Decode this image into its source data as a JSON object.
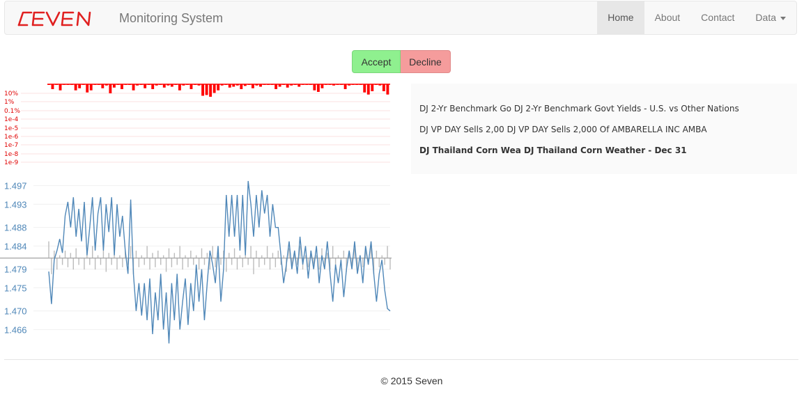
{
  "navbar": {
    "brand_logo_text": "SEVEN",
    "brand_title": "Monitoring System",
    "items": [
      {
        "label": "Home",
        "active": true
      },
      {
        "label": "About"
      },
      {
        "label": "Contact"
      },
      {
        "label": "Data",
        "dropdown": true
      }
    ]
  },
  "actions": {
    "accept_label": "Accept",
    "decline_label": "Decline"
  },
  "colors": {
    "accept": "#8ff08f",
    "decline": "#f59c9c",
    "brand": "#e02020",
    "series": "#4f87b8",
    "reference": "#bbbbbb",
    "bars": "#ff0000"
  },
  "chart_data": [
    {
      "type": "bar",
      "scale": "log",
      "ytick_labels": [
        "10%",
        "1%",
        "0.1%",
        "1e-4",
        "1e-5",
        "1e-6",
        "1e-7",
        "1e-8",
        "1e-9"
      ],
      "values_percent": [
        0.4,
        2,
        0.3,
        3,
        0.3,
        0.1,
        0.5,
        3,
        1.5,
        0.3,
        6,
        3,
        0.4,
        0.2,
        1.5,
        0.6,
        8,
        1.2,
        0.3,
        2,
        0.5,
        0.2,
        3,
        0.6,
        0.3,
        1.5,
        0.5,
        2,
        0.6,
        0.4,
        1.2,
        0.6,
        0.9,
        0.4,
        3,
        0.6,
        0.5,
        2,
        0.4,
        0.6,
        18,
        14,
        25,
        7,
        3,
        0.6,
        0.5,
        1.2,
        0.9,
        0.6,
        2,
        0.7,
        0.3,
        1.5,
        0.6,
        0.9,
        0.4,
        0.5,
        0.3,
        2,
        0.9,
        0.4,
        1.2,
        0.6,
        0.3,
        0.9,
        0.5,
        0.3,
        0.4,
        3,
        5,
        1.5,
        0.4,
        0.3,
        0.6,
        0.5,
        0.2,
        2,
        0.6,
        0.3,
        0.2,
        0.5,
        6,
        12,
        4,
        0.3,
        0.6,
        4,
        12
      ]
    },
    {
      "type": "line",
      "ytick_labels": [
        "1.497",
        "1.493",
        "1.488",
        "1.484",
        "1.479",
        "1.475",
        "1.470",
        "1.466"
      ],
      "ylim": [
        1.4635,
        1.4995
      ],
      "reference_level": 1.4814,
      "series": [
        {
          "role": "price",
          "values": [
            1.4785,
            1.4715,
            1.481,
            1.483,
            1.4855,
            1.4825,
            1.4905,
            1.4935,
            1.488,
            1.4945,
            1.486,
            1.492,
            1.485,
            1.4935,
            1.482,
            1.488,
            1.4945,
            1.483,
            1.491,
            1.4945,
            1.483,
            1.493,
            1.487,
            1.4945,
            1.482,
            1.493,
            1.486,
            1.4905,
            1.483,
            1.478,
            1.494,
            1.478,
            1.47,
            1.476,
            1.469,
            1.476,
            1.468,
            1.477,
            1.465,
            1.474,
            1.468,
            1.478,
            1.466,
            1.474,
            1.463,
            1.476,
            1.468,
            1.478,
            1.466,
            1.472,
            1.477,
            1.467,
            1.476,
            1.47,
            1.48,
            1.472,
            1.479,
            1.468,
            1.476,
            1.483,
            1.48,
            1.476,
            1.484,
            1.472,
            1.479,
            1.495,
            1.486,
            1.495,
            1.486,
            1.495,
            1.483,
            1.495,
            1.482,
            1.498,
            1.493,
            1.486,
            1.495,
            1.488,
            1.496,
            1.491,
            1.495,
            1.486,
            1.493,
            1.488,
            1.488,
            1.482,
            1.476,
            1.48,
            1.485,
            1.479,
            1.483,
            1.478,
            1.486,
            1.48,
            1.484,
            1.477,
            1.483,
            1.479,
            1.484,
            1.476,
            1.482,
            1.479,
            1.485,
            1.478,
            1.472,
            1.48,
            1.476,
            1.481,
            1.473,
            1.479,
            1.483,
            1.479,
            1.485,
            1.478,
            1.482,
            1.476,
            1.484,
            1.48,
            1.485,
            1.478,
            1.472,
            1.478,
            1.481,
            1.4745,
            1.4705,
            1.47
          ]
        },
        {
          "role": "reference",
          "values": [
            1.485,
            1.478,
            1.483,
            1.479,
            1.482,
            1.48,
            1.483,
            1.4795,
            1.4825,
            1.479,
            1.4835,
            1.48,
            1.4815,
            1.479,
            1.483,
            1.48,
            1.484,
            1.479,
            1.482,
            1.48,
            1.483,
            1.4785,
            1.4825,
            1.48,
            1.4835,
            1.479,
            1.482,
            1.4795,
            1.483,
            1.48,
            1.484,
            1.478,
            1.483,
            1.4795,
            1.482,
            1.48,
            1.484,
            1.479,
            1.4825,
            1.4795,
            1.483,
            1.48,
            1.482,
            1.4785,
            1.4835,
            1.4795,
            1.4825,
            1.48,
            1.484,
            1.479,
            1.482,
            1.4795,
            1.483,
            1.48,
            1.482,
            1.479,
            1.4835,
            1.48,
            1.4825,
            1.479,
            1.484,
            1.4795,
            1.482,
            1.48,
            1.483,
            1.4785,
            1.4825,
            1.48,
            1.4835,
            1.479,
            1.482,
            1.4795,
            1.483,
            1.48,
            1.484,
            1.478,
            1.483,
            1.4795,
            1.482,
            1.48,
            1.484,
            1.479,
            1.4825,
            1.4795,
            1.483,
            1.48,
            1.482,
            1.4785,
            1.4835,
            1.4795,
            1.4825,
            1.48,
            1.484,
            1.479,
            1.482,
            1.4795,
            1.483,
            1.48,
            1.482,
            1.479,
            1.4835,
            1.48,
            1.4825,
            1.479,
            1.484,
            1.4795,
            1.482,
            1.48,
            1.483,
            1.4785,
            1.4825,
            1.48,
            1.4835,
            1.479,
            1.482,
            1.4795,
            1.483,
            1.48,
            1.484,
            1.478,
            1.483,
            1.4795,
            1.482,
            1.48,
            1.484,
            1.479
          ]
        }
      ]
    }
  ],
  "news": [
    {
      "text": "DJ 2-Yr Benchmark Go DJ 2-Yr Benchmark Govt Yields - U.S. vs Other Nations",
      "bold": false
    },
    {
      "text": "DJ VP DAY Sells 2,00 DJ VP DAY Sells 2,000 Of AMBARELLA INC AMBA",
      "bold": false
    },
    {
      "text": "DJ Thailand Corn Wea DJ Thailand Corn Weather - Dec 31",
      "bold": true
    }
  ],
  "footer": {
    "text": "© 2015 Seven"
  }
}
